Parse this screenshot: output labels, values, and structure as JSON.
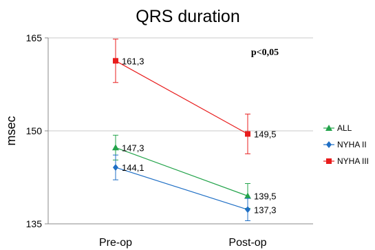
{
  "chart_data": {
    "type": "line",
    "title": "QRS duration",
    "ylabel": "msec",
    "xlabel": "",
    "categories": [
      "Pre-op",
      "Post-op"
    ],
    "ylim": [
      135,
      165
    ],
    "yticks": [
      135,
      150,
      165
    ],
    "grid": true,
    "legend_position": "right",
    "annotation": "p<0,05",
    "series": [
      {
        "name": "ALL",
        "color": "#22A34A",
        "marker": "triangle",
        "values": [
          147.3,
          139.5
        ],
        "labels": [
          "147,3",
          "139,5"
        ],
        "error": [
          2.0,
          2.0
        ]
      },
      {
        "name": "NYHA II",
        "color": "#1F6FC5",
        "marker": "diamond",
        "values": [
          144.1,
          137.3
        ],
        "labels": [
          "144,1",
          "137,3"
        ],
        "error": [
          2.0,
          1.8
        ]
      },
      {
        "name": "NYHA III",
        "color": "#E81C1C",
        "marker": "square",
        "values": [
          161.3,
          149.5
        ],
        "labels": [
          "161,3",
          "149,5"
        ],
        "error": [
          3.5,
          3.2
        ]
      }
    ]
  }
}
